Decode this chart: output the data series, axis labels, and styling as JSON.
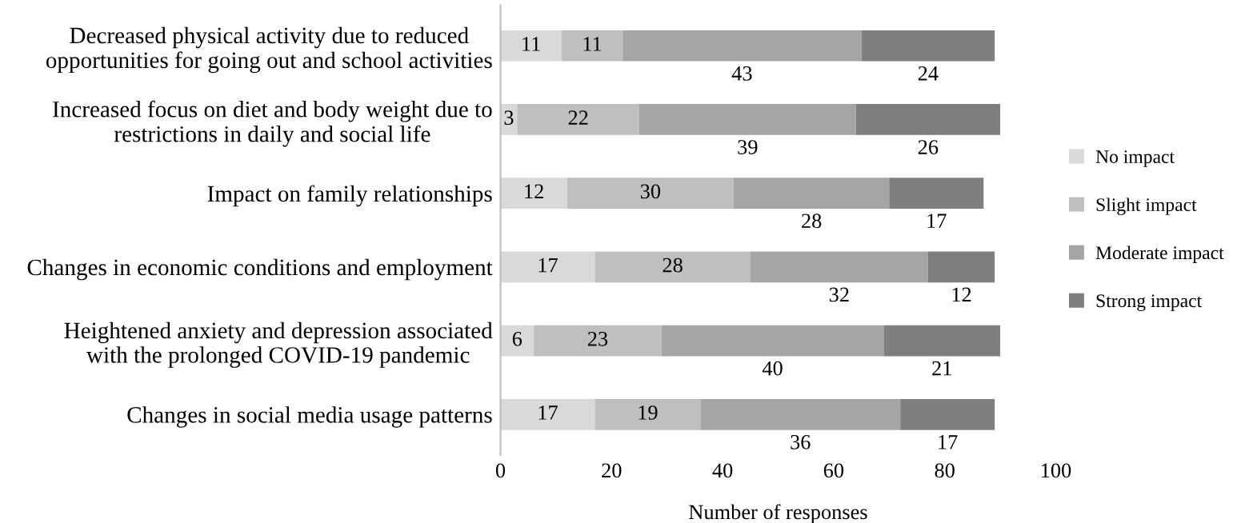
{
  "chart_data": {
    "type": "bar",
    "orientation": "horizontal",
    "stacked": true,
    "data_labels": true,
    "categories": [
      "Decreased physical activity due to reduced\nopportunities for going out and school activities",
      "Increased focus on diet and body weight due to\nrestrictions in daily and social life",
      "Impact on family relationships",
      "Changes in economic conditions and employment",
      "Heightened anxiety and depression associated\nwith the prolonged COVID-19 pandemic",
      "Changes in social media usage patterns"
    ],
    "series": [
      {
        "name": "No impact",
        "color": "#d9d9d9",
        "values": [
          11,
          3,
          12,
          17,
          6,
          17
        ]
      },
      {
        "name": "Slight impact",
        "color": "#bfbfbf",
        "values": [
          11,
          22,
          30,
          28,
          23,
          19
        ]
      },
      {
        "name": "Moderate impact",
        "color": "#a5a5a5",
        "values": [
          43,
          39,
          28,
          32,
          40,
          36
        ]
      },
      {
        "name": "Strong impact",
        "color": "#7f7f7f",
        "values": [
          24,
          26,
          17,
          12,
          21,
          17
        ]
      }
    ],
    "xlim": [
      0,
      100
    ],
    "xticks": [
      0,
      20,
      40,
      60,
      80,
      100
    ],
    "xlabel": "Number of responses",
    "legend": "right",
    "grid": false
  }
}
